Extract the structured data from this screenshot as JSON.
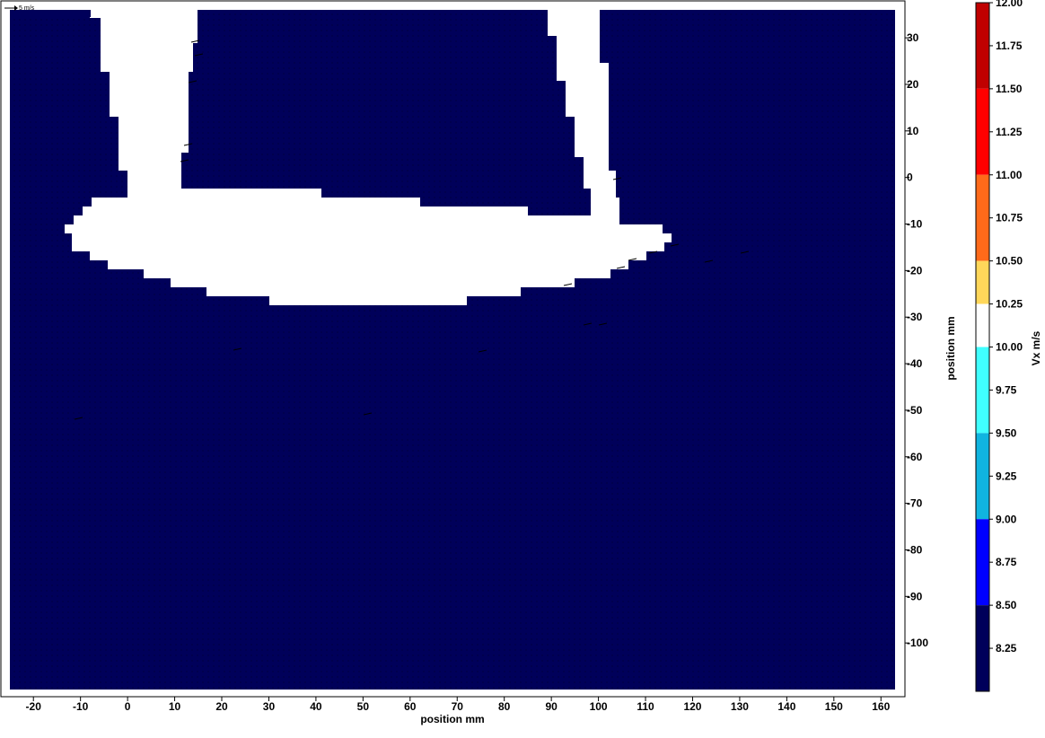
{
  "chart_data": {
    "type": "heatmap",
    "subtype": "filled-contour with velocity vectors",
    "xlabel": "position mm",
    "ylabel": "position mm",
    "xlim": [
      -25,
      163
    ],
    "ylim": [
      -110,
      36
    ],
    "x_ticks": [
      "-20",
      "-10",
      "0",
      "10",
      "20",
      "30",
      "40",
      "50",
      "60",
      "70",
      "80",
      "90",
      "100",
      "110",
      "120",
      "130",
      "140",
      "150",
      "160"
    ],
    "y_ticks": [
      "30",
      "20",
      "10",
      "0",
      "-10",
      "-20",
      "-30",
      "-40",
      "-50",
      "-60",
      "-70",
      "-80",
      "-90",
      "-100"
    ],
    "y_axis_side": "right",
    "vector_reference": "5 m/s",
    "field_value_note": "field predominantly in lowest band (8.25)",
    "mask_color": "#ffffff",
    "mask_polygon": [
      [
        -8,
        36
      ],
      [
        7,
        36
      ],
      [
        7,
        20
      ],
      [
        -2,
        20
      ],
      [
        -2,
        1
      ],
      [
        -3,
        1
      ],
      [
        -3,
        0
      ],
      [
        -2,
        0
      ],
      [
        -2,
        -2
      ],
      [
        -8,
        -2
      ],
      [
        -8,
        0
      ],
      [
        -12,
        0
      ],
      [
        -12,
        3
      ],
      [
        -12,
        4
      ],
      [
        -14,
        4
      ],
      [
        -15,
        5
      ],
      [
        -15,
        6
      ],
      [
        -16,
        6
      ],
      [
        -16,
        8
      ],
      [
        -18,
        8
      ],
      [
        -18,
        10
      ],
      [
        -20,
        10
      ],
      [
        -21,
        11
      ],
      [
        -21,
        13
      ],
      [
        -22,
        14
      ],
      [
        -22,
        16
      ],
      [
        -23,
        17
      ],
      [
        -23,
        36
      ]
    ],
    "colorbar": {
      "label": "Vx m/s",
      "levels": [
        "12.00",
        "11.75",
        "11.50",
        "11.25",
        "11.00",
        "10.75",
        "10.50",
        "10.25",
        "10.00",
        "9.75",
        "9.50",
        "9.25",
        "9.00",
        "8.75",
        "8.50",
        "8.25"
      ],
      "bands": [
        {
          "from": 11.5,
          "to": 12.0,
          "color": "#c00000"
        },
        {
          "from": 11.0,
          "to": 11.5,
          "color": "#ff0000"
        },
        {
          "from": 10.5,
          "to": 11.0,
          "color": "#ff6a1a"
        },
        {
          "from": 10.25,
          "to": 10.5,
          "color": "#ffd75a"
        },
        {
          "from": 10.0,
          "to": 10.25,
          "color": "#ffffff"
        },
        {
          "from": 9.5,
          "to": 10.0,
          "color": "#40ffff"
        },
        {
          "from": 9.0,
          "to": 9.5,
          "color": "#10b4e0"
        },
        {
          "from": 8.5,
          "to": 9.0,
          "color": "#0000ff"
        },
        {
          "from": 8.0,
          "to": 8.5,
          "color": "#00005a"
        }
      ]
    },
    "field_color": "#00005a"
  }
}
